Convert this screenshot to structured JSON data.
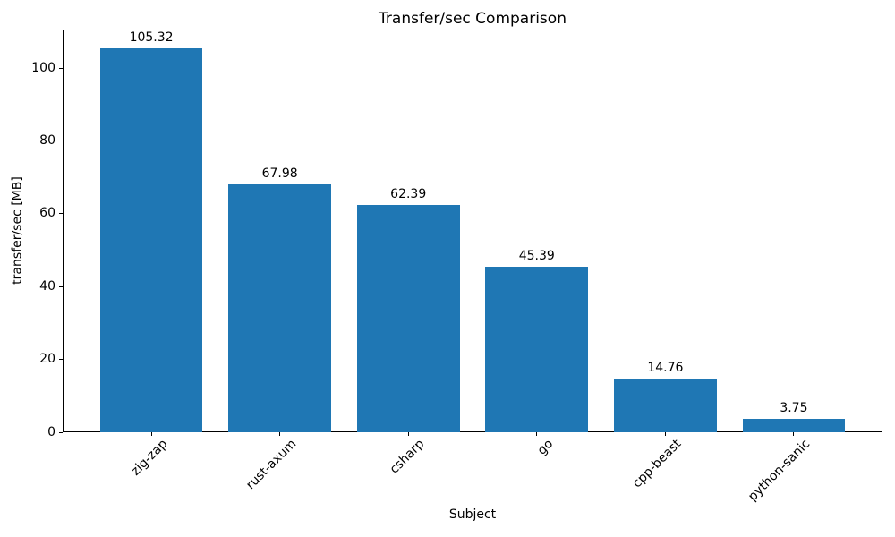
{
  "chart_data": {
    "type": "bar",
    "title": "Transfer/sec Comparison",
    "xlabel": "Subject",
    "ylabel": "transfer/sec [MB]",
    "categories": [
      "zig-zap",
      "rust-axum",
      "csharp",
      "go",
      "cpp-beast",
      "python-sanic"
    ],
    "values": [
      105.32,
      67.98,
      62.39,
      45.39,
      14.76,
      3.75
    ],
    "value_labels": [
      "105.32",
      "67.98",
      "62.39",
      "45.39",
      "14.76",
      "3.75"
    ],
    "ylim": [
      0,
      110.59
    ],
    "yticks": [
      0,
      20,
      40,
      60,
      80,
      100
    ],
    "ytick_labels": [
      "0",
      "20",
      "40",
      "60",
      "80",
      "100"
    ],
    "x_tick_rotation_deg": 45,
    "bar_width_frac": 0.8,
    "bar_color": "#1f77b4",
    "axis_color": "#000000",
    "text_color": "#000000",
    "grid": false,
    "legend": null
  }
}
